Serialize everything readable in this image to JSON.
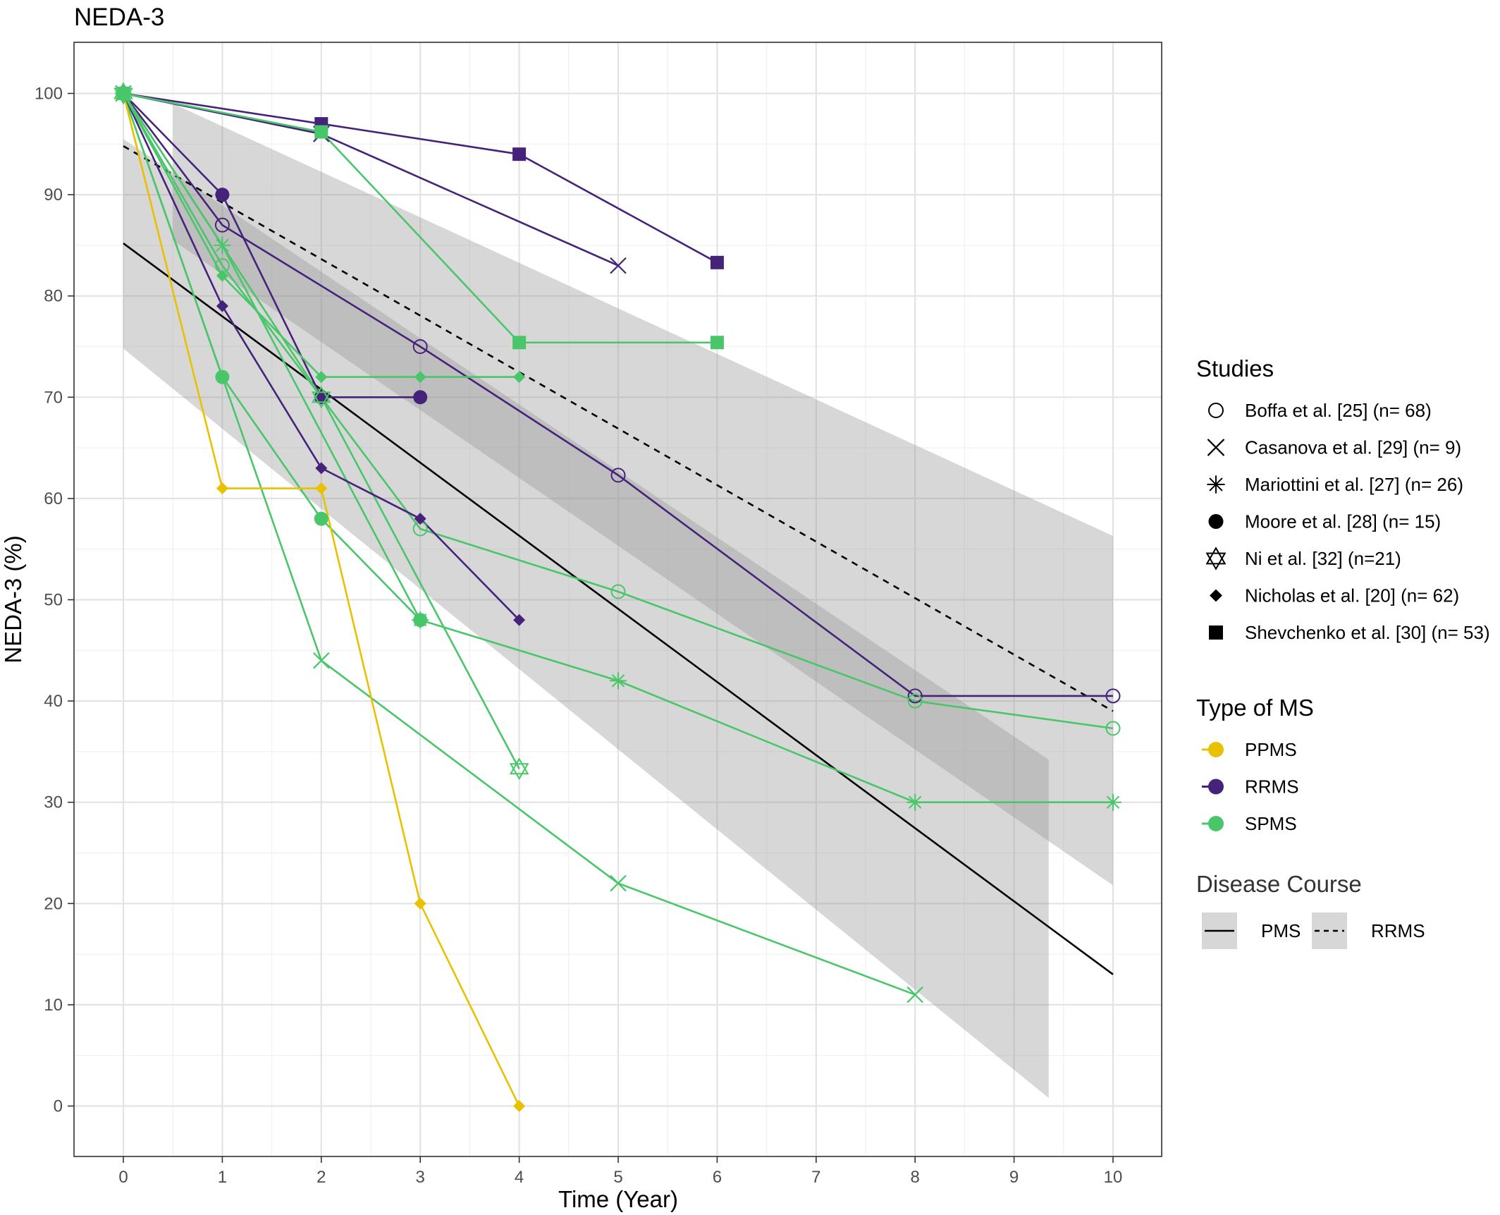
{
  "chart_data": {
    "type": "line",
    "title": "NEDA-3",
    "xlabel": "Time (Year)",
    "ylabel": "NEDA-3 (%)",
    "xlim": [
      -0.5,
      10.5
    ],
    "ylim": [
      -5,
      105
    ],
    "xticks": [
      0,
      1,
      2,
      3,
      4,
      5,
      6,
      7,
      8,
      9,
      10
    ],
    "yticks": [
      0,
      10,
      20,
      30,
      40,
      50,
      60,
      70,
      80,
      90,
      100
    ],
    "grid": true,
    "legend_position": "right",
    "colors": {
      "PPMS": "#e8c100",
      "RRMS": "#46237a",
      "SPMS": "#4ac66a"
    },
    "series": [
      {
        "study": "Boffa et al. [25] (n= 68)",
        "type": "RRMS",
        "shape": "open-circle",
        "points": [
          [
            0,
            100
          ],
          [
            1,
            87
          ],
          [
            3,
            75
          ],
          [
            5,
            62.3
          ],
          [
            8,
            40.5
          ],
          [
            10,
            40.5
          ]
        ]
      },
      {
        "study": "Boffa et al. [25] (n= 68)",
        "type": "SPMS",
        "shape": "open-circle",
        "points": [
          [
            0,
            100
          ],
          [
            1,
            83
          ],
          [
            3,
            57
          ],
          [
            5,
            50.8
          ],
          [
            8,
            40
          ],
          [
            10,
            37.3
          ]
        ]
      },
      {
        "study": "Casanova et al. [29] (n= 9)",
        "type": "RRMS",
        "shape": "cross",
        "points": [
          [
            0,
            100
          ],
          [
            2,
            96
          ],
          [
            5,
            83
          ]
        ]
      },
      {
        "study": "Casanova et al. [29] (n= 9)",
        "type": "SPMS",
        "shape": "cross",
        "points": [
          [
            0,
            100
          ],
          [
            2,
            44
          ],
          [
            5,
            22
          ],
          [
            8,
            11
          ]
        ]
      },
      {
        "study": "Mariottini et al. [27] (n= 26)",
        "type": "SPMS",
        "shape": "asterisk",
        "points": [
          [
            0,
            100
          ],
          [
            1,
            85
          ],
          [
            3,
            48
          ],
          [
            5,
            42
          ],
          [
            8,
            30
          ],
          [
            10,
            30
          ]
        ]
      },
      {
        "study": "Moore et al. [28] (n= 15)",
        "type": "RRMS",
        "shape": "filled-circle",
        "points": [
          [
            0,
            100
          ],
          [
            1,
            90
          ],
          [
            2,
            70
          ],
          [
            3,
            70
          ]
        ]
      },
      {
        "study": "Moore et al. [28] (n= 15)",
        "type": "SPMS",
        "shape": "filled-circle",
        "points": [
          [
            0,
            100
          ],
          [
            1,
            72
          ],
          [
            2,
            58
          ],
          [
            3,
            48
          ]
        ]
      },
      {
        "study": "Ni et al. [32] (n=21)",
        "type": "SPMS",
        "shape": "star-of-david",
        "points": [
          [
            0,
            100
          ],
          [
            2,
            70
          ],
          [
            4,
            33.3
          ]
        ]
      },
      {
        "study": "Nicholas et al. [20] (n= 62)",
        "type": "PPMS",
        "shape": "diamond",
        "points": [
          [
            0,
            100
          ],
          [
            1,
            61
          ],
          [
            2,
            61
          ],
          [
            3,
            20
          ],
          [
            4,
            0
          ]
        ]
      },
      {
        "study": "Nicholas et al. [20] (n= 62)",
        "type": "RRMS",
        "shape": "diamond",
        "points": [
          [
            0,
            100
          ],
          [
            1,
            79
          ],
          [
            2,
            63
          ],
          [
            3,
            58
          ],
          [
            4,
            48
          ]
        ]
      },
      {
        "study": "Nicholas et al. [20] (n= 62)",
        "type": "SPMS",
        "shape": "diamond",
        "points": [
          [
            0,
            100
          ],
          [
            1,
            82
          ],
          [
            2,
            72
          ],
          [
            3,
            72
          ],
          [
            4,
            72
          ]
        ]
      },
      {
        "study": "Shevchenko et al. [30] (n= 53)",
        "type": "RRMS",
        "shape": "square",
        "points": [
          [
            0,
            100
          ],
          [
            2,
            97
          ],
          [
            4,
            94
          ],
          [
            6,
            83.3
          ]
        ]
      },
      {
        "study": "Shevchenko et al. [30] (n= 53)",
        "type": "SPMS",
        "shape": "square",
        "points": [
          [
            0,
            100
          ],
          [
            2,
            96.2
          ],
          [
            4,
            75.4
          ],
          [
            6,
            75.4
          ]
        ]
      }
    ],
    "regressions": [
      {
        "course": "PMS",
        "linetype": "solid",
        "x": [
          0,
          10
        ],
        "y": [
          85.2,
          13
        ],
        "band": {
          "x": [
            0,
            9.35
          ],
          "lower": [
            74.8,
            0.8
          ],
          "upper": [
            95.5,
            34.2
          ]
        }
      },
      {
        "course": "RRMS",
        "linetype": "dashed",
        "x": [
          0,
          10
        ],
        "y": [
          94.8,
          39
        ],
        "band": {
          "x": [
            0.5,
            10
          ],
          "lower": [
            85.5,
            21.8
          ],
          "upper": [
            99,
            56.3
          ]
        }
      }
    ],
    "legend": {
      "studies_title": "Studies",
      "studies": [
        {
          "label": "Boffa et al. [25] (n= 68)",
          "shape": "open-circle"
        },
        {
          "label": "Casanova et al. [29] (n= 9)",
          "shape": "cross"
        },
        {
          "label": "Mariottini et al. [27] (n= 26)",
          "shape": "asterisk"
        },
        {
          "label": "Moore et al. [28] (n= 15)",
          "shape": "filled-circle"
        },
        {
          "label": "Ni et al. [32] (n=21)",
          "shape": "star-of-david"
        },
        {
          "label": "Nicholas et al. [20] (n= 62)",
          "shape": "diamond"
        },
        {
          "label": "Shevchenko et al. [30] (n= 53)",
          "shape": "square"
        }
      ],
      "types_title": "Type of MS",
      "types": [
        {
          "label": "PPMS",
          "color": "#e8c100"
        },
        {
          "label": "RRMS",
          "color": "#46237a"
        },
        {
          "label": "SPMS",
          "color": "#4ac66a"
        }
      ],
      "course_title": "Disease Course",
      "courses": [
        {
          "label": "PMS",
          "linetype": "solid"
        },
        {
          "label": "RRMS",
          "linetype": "dashed"
        }
      ]
    }
  }
}
